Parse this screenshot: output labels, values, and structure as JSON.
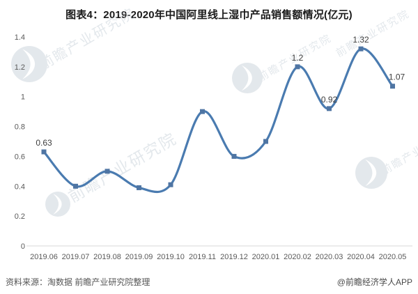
{
  "chart_data": {
    "type": "line",
    "title": "图表4：2019-2020年中国阿里线上湿巾产品销售额情况(亿元)",
    "categories": [
      "2019.06",
      "2019.07",
      "2019.08",
      "2019.09",
      "2019.10",
      "2019.11",
      "2019.12",
      "2020.01",
      "2020.02",
      "2020.03",
      "2020.04",
      "2020.05"
    ],
    "values": [
      0.63,
      0.4,
      0.5,
      0.39,
      0.41,
      0.9,
      0.6,
      0.7,
      1.2,
      0.92,
      1.32,
      1.07
    ],
    "data_labels": [
      "0.63",
      null,
      null,
      null,
      null,
      null,
      null,
      null,
      "1.2",
      "0.92",
      "1.32",
      "1.07"
    ],
    "xlabel": "",
    "ylabel": "",
    "ylim": [
      0,
      1.4
    ],
    "yticks": [
      0,
      0.2,
      0.4,
      0.6,
      0.8,
      1,
      1.2,
      1.4
    ],
    "ytick_labels": [
      "0",
      "0.2",
      "0.4",
      "0.6",
      "0.8",
      "1",
      "1.2",
      "1.4"
    ],
    "grid": false,
    "legend": "none",
    "line_color": "#4a7bb0",
    "marker_color": "#4f75a3",
    "marker_shape": "square",
    "axis_text_color": "#595959",
    "baseline_color": "#d9d9d9",
    "label_color": "#3d3d3d",
    "watermark_color": "#c9d2da"
  },
  "watermark": {
    "text": "前瞻产业研究院"
  },
  "footer": {
    "source": "资料来源：淘数据 前瞻产业研究院整理",
    "credit": "@前瞻经济学人APP"
  }
}
